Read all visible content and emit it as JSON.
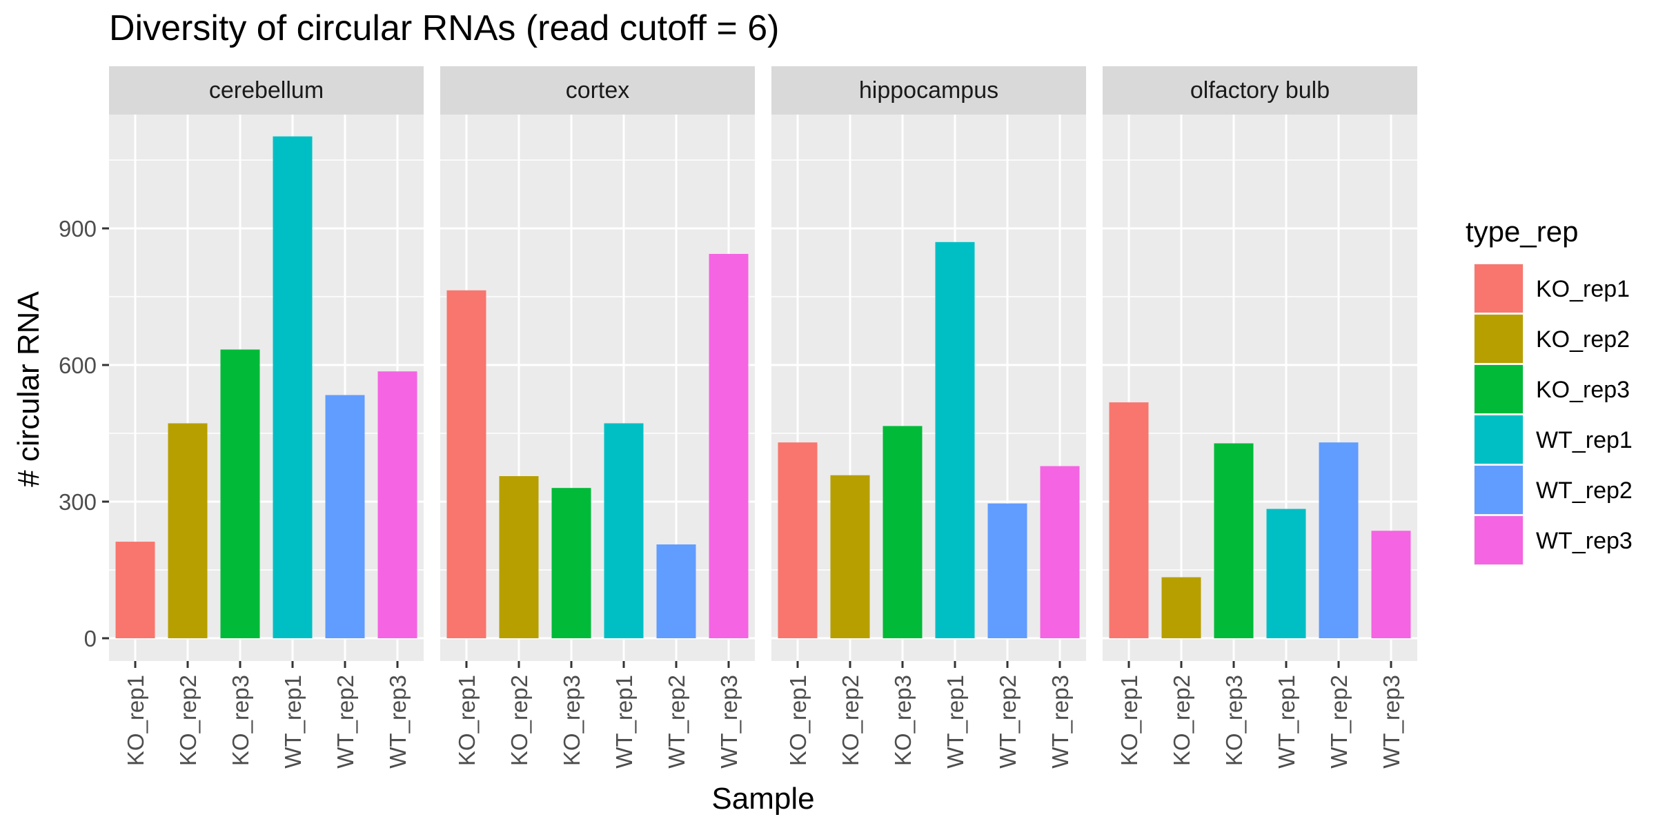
{
  "chart_data": {
    "type": "bar",
    "title": "Diversity of circular RNAs (read cutoff = 6)",
    "xlabel": "Sample",
    "ylabel": "# circular RNA",
    "ylim": [
      -50,
      1150
    ],
    "yticks": [
      0,
      300,
      600,
      900
    ],
    "grid": true,
    "legend": {
      "title": "type_rep",
      "placement": "right",
      "entries": [
        "KO_rep1",
        "KO_rep2",
        "KO_rep3",
        "WT_rep1",
        "WT_rep2",
        "WT_rep3"
      ]
    },
    "colors": {
      "KO_rep1": "#F8766D",
      "KO_rep2": "#B79F00",
      "KO_rep3": "#00BA38",
      "WT_rep1": "#00BFC4",
      "WT_rep2": "#619CFF",
      "WT_rep3": "#F564E3"
    },
    "categories": [
      "KO_rep1",
      "KO_rep2",
      "KO_rep3",
      "WT_rep1",
      "WT_rep2",
      "WT_rep3"
    ],
    "panels": [
      {
        "name": "cerebellum",
        "values": [
          212,
          472,
          634,
          1102,
          534,
          586
        ]
      },
      {
        "name": "cortex",
        "values": [
          764,
          356,
          330,
          472,
          206,
          844
        ]
      },
      {
        "name": "hippocampus",
        "values": [
          430,
          358,
          466,
          870,
          296,
          378
        ]
      },
      {
        "name": "olfactory bulb",
        "values": [
          518,
          134,
          428,
          284,
          430,
          236
        ]
      }
    ]
  }
}
